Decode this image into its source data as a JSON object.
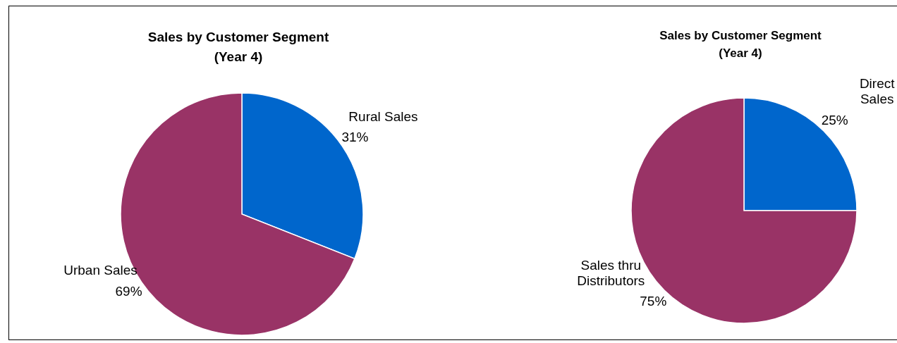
{
  "chart_data": [
    {
      "type": "pie",
      "title": "Sales by Customer Segment\n(Year 4)",
      "categories": [
        "Rural Sales",
        "Urban Sales"
      ],
      "values": [
        31,
        69
      ],
      "value_labels": [
        "31%",
        "69%"
      ],
      "colors": [
        "#0066cc",
        "#993366"
      ]
    },
    {
      "type": "pie",
      "title": "Sales by Customer Segment\n(Year 4)",
      "categories": [
        "Direct Sales",
        "Sales thru Distributors"
      ],
      "values": [
        25,
        75
      ],
      "value_labels": [
        "25%",
        "75%"
      ],
      "colors": [
        "#0066cc",
        "#993366"
      ]
    }
  ]
}
